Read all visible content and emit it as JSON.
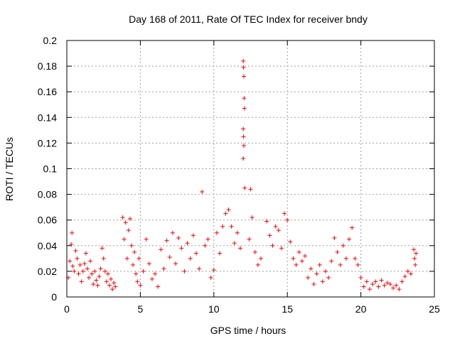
{
  "chart_data": {
    "type": "scatter",
    "title": "Day 168 of 2011, Rate Of TEC Index for receiver bndy",
    "xlabel": "GPS time / hours",
    "ylabel": "ROTI / TECUs",
    "xlim": [
      0,
      25
    ],
    "ylim": [
      0,
      0.2
    ],
    "x_ticks": [
      "0",
      "5",
      "10",
      "15",
      "20",
      "25"
    ],
    "y_ticks": [
      "0",
      "0.02",
      "0.04",
      "0.06",
      "0.08",
      "0.1",
      "0.12",
      "0.14",
      "0.16",
      "0.18",
      "0.2"
    ],
    "grid": true,
    "marker": "plus",
    "marker_color": "#ff0000",
    "series": [
      {
        "points": [
          [
            0.1,
            0.015
          ],
          [
            0.2,
            0.028
          ],
          [
            0.3,
            0.041
          ],
          [
            0.35,
            0.05
          ],
          [
            0.4,
            0.024
          ],
          [
            0.5,
            0.02
          ],
          [
            0.6,
            0.036
          ],
          [
            0.7,
            0.03
          ],
          [
            0.8,
            0.018
          ],
          [
            0.9,
            0.025
          ],
          [
            1.0,
            0.012
          ],
          [
            1.1,
            0.02
          ],
          [
            1.2,
            0.026
          ],
          [
            1.3,
            0.034
          ],
          [
            1.4,
            0.022
          ],
          [
            1.5,
            0.015
          ],
          [
            1.6,
            0.028
          ],
          [
            1.7,
            0.018
          ],
          [
            1.8,
            0.01
          ],
          [
            1.9,
            0.02
          ],
          [
            2.0,
            0.013
          ],
          [
            2.1,
            0.009
          ],
          [
            2.2,
            0.016
          ],
          [
            2.3,
            0.022
          ],
          [
            2.4,
            0.038
          ],
          [
            2.5,
            0.03
          ],
          [
            2.6,
            0.02
          ],
          [
            2.7,
            0.012
          ],
          [
            2.8,
            0.018
          ],
          [
            2.9,
            0.009
          ],
          [
            3.0,
            0.014
          ],
          [
            3.1,
            0.006
          ],
          [
            3.2,
            0.011
          ],
          [
            3.3,
            0.008
          ],
          [
            3.8,
            0.062
          ],
          [
            3.9,
            0.045
          ],
          [
            4.0,
            0.058
          ],
          [
            4.1,
            0.03
          ],
          [
            4.2,
            0.052
          ],
          [
            4.3,
            0.061
          ],
          [
            4.4,
            0.04
          ],
          [
            4.5,
            0.025
          ],
          [
            4.6,
            0.035
          ],
          [
            4.7,
            0.018
          ],
          [
            4.8,
            0.012
          ],
          [
            4.9,
            0.03
          ],
          [
            5.0,
            0.009
          ],
          [
            5.2,
            0.02
          ],
          [
            5.4,
            0.045
          ],
          [
            5.6,
            0.026
          ],
          [
            5.8,
            0.014
          ],
          [
            6.0,
            0.018
          ],
          [
            6.2,
            0.008
          ],
          [
            6.4,
            0.037
          ],
          [
            6.6,
            0.022
          ],
          [
            6.8,
            0.044
          ],
          [
            7.0,
            0.031
          ],
          [
            7.2,
            0.05
          ],
          [
            7.4,
            0.026
          ],
          [
            7.6,
            0.046
          ],
          [
            7.8,
            0.038
          ],
          [
            8.0,
            0.02
          ],
          [
            8.2,
            0.042
          ],
          [
            8.4,
            0.03
          ],
          [
            8.6,
            0.048
          ],
          [
            8.8,
            0.034
          ],
          [
            9.0,
            0.022
          ],
          [
            9.2,
            0.082
          ],
          [
            9.4,
            0.04
          ],
          [
            9.6,
            0.045
          ],
          [
            9.8,
            0.015
          ],
          [
            10.0,
            0.021
          ],
          [
            10.2,
            0.05
          ],
          [
            10.4,
            0.034
          ],
          [
            10.6,
            0.055
          ],
          [
            10.8,
            0.065
          ],
          [
            11.0,
            0.068
          ],
          [
            11.2,
            0.055
          ],
          [
            11.4,
            0.042
          ],
          [
            11.6,
            0.05
          ],
          [
            11.8,
            0.038
          ],
          [
            12.0,
            0.184
          ],
          [
            12.02,
            0.179
          ],
          [
            12.04,
            0.172
          ],
          [
            12.06,
            0.155
          ],
          [
            12.08,
            0.147
          ],
          [
            12.0,
            0.131
          ],
          [
            12.02,
            0.125
          ],
          [
            12.04,
            0.118
          ],
          [
            12.0,
            0.108
          ],
          [
            12.1,
            0.085
          ],
          [
            12.5,
            0.084
          ],
          [
            12.6,
            0.062
          ],
          [
            12.4,
            0.045
          ],
          [
            12.8,
            0.035
          ],
          [
            13.0,
            0.025
          ],
          [
            13.2,
            0.03
          ],
          [
            13.6,
            0.059
          ],
          [
            13.8,
            0.048
          ],
          [
            14.0,
            0.04
          ],
          [
            14.2,
            0.055
          ],
          [
            14.4,
            0.052
          ],
          [
            14.6,
            0.038
          ],
          [
            14.8,
            0.065
          ],
          [
            15.0,
            0.06
          ],
          [
            15.2,
            0.043
          ],
          [
            15.4,
            0.03
          ],
          [
            15.6,
            0.025
          ],
          [
            15.8,
            0.035
          ],
          [
            16.0,
            0.028
          ],
          [
            16.2,
            0.032
          ],
          [
            16.4,
            0.015
          ],
          [
            16.6,
            0.022
          ],
          [
            16.8,
            0.01
          ],
          [
            17.0,
            0.018
          ],
          [
            17.2,
            0.025
          ],
          [
            17.4,
            0.012
          ],
          [
            17.6,
            0.02
          ],
          [
            17.8,
            0.015
          ],
          [
            18.0,
            0.028
          ],
          [
            18.2,
            0.046
          ],
          [
            18.4,
            0.035
          ],
          [
            18.6,
            0.025
          ],
          [
            18.8,
            0.04
          ],
          [
            19.0,
            0.03
          ],
          [
            19.2,
            0.045
          ],
          [
            19.4,
            0.054
          ],
          [
            19.6,
            0.03
          ],
          [
            19.8,
            0.025
          ],
          [
            20.0,
            0.015
          ],
          [
            20.2,
            0.008
          ],
          [
            20.4,
            0.012
          ],
          [
            20.6,
            0.006
          ],
          [
            20.8,
            0.01
          ],
          [
            21.0,
            0.012
          ],
          [
            21.2,
            0.008
          ],
          [
            21.4,
            0.013
          ],
          [
            21.6,
            0.009
          ],
          [
            21.8,
            0.011
          ],
          [
            22.0,
            0.01
          ],
          [
            22.2,
            0.007
          ],
          [
            22.4,
            0.009
          ],
          [
            22.6,
            0.006
          ],
          [
            22.8,
            0.012
          ],
          [
            23.0,
            0.016
          ],
          [
            23.2,
            0.02
          ],
          [
            23.4,
            0.018
          ],
          [
            23.6,
            0.037
          ],
          [
            23.65,
            0.03
          ],
          [
            23.7,
            0.025
          ],
          [
            23.75,
            0.034
          ]
        ]
      }
    ]
  }
}
